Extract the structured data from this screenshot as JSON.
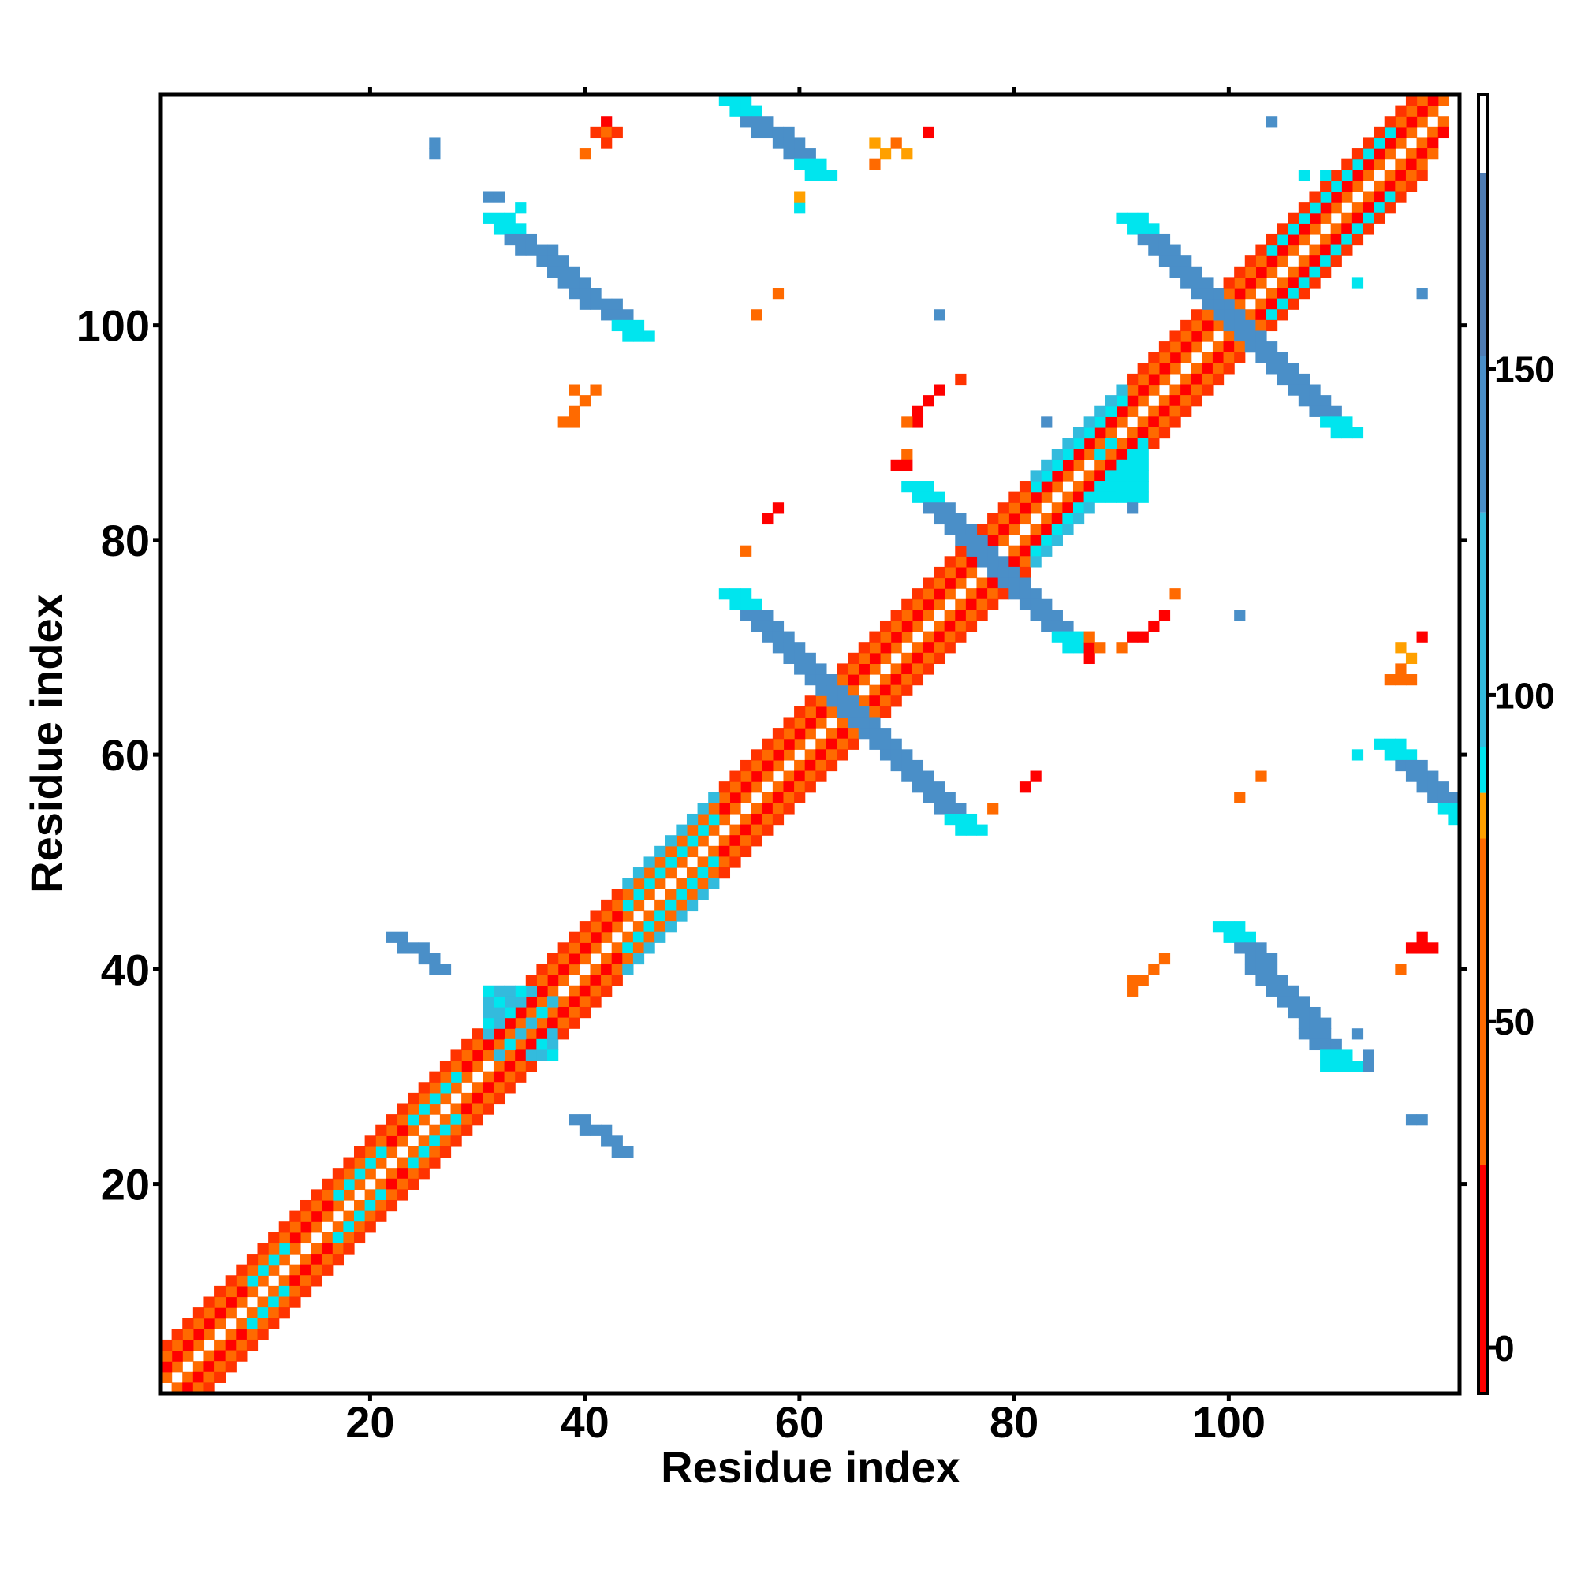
{
  "chart_data": {
    "type": "heatmap",
    "title": "",
    "xlabel": "Residue index",
    "ylabel": "Residue index",
    "xlim": [
      0.5,
      121.5
    ],
    "ylim": [
      0.5,
      121.5
    ],
    "x_ticks": [
      20,
      40,
      60,
      80,
      100
    ],
    "y_ticks": [
      20,
      40,
      60,
      80,
      100
    ],
    "grid": false,
    "legend": "colorbar-right",
    "colorbar": {
      "ticks": [
        0,
        50,
        100,
        150
      ],
      "range": [
        -7,
        192
      ],
      "segments": [
        {
          "from": -7,
          "to": 28,
          "color": "#ff0000"
        },
        {
          "from": 28,
          "to": 78,
          "color": "#ff6a00"
        },
        {
          "from": 78,
          "to": 85,
          "color": "#ffa000"
        },
        {
          "from": 85,
          "to": 92,
          "color": "#00e5ee"
        },
        {
          "from": 92,
          "to": 128,
          "color": "#33bbdd"
        },
        {
          "from": 128,
          "to": 152,
          "color": "#4a8fc8"
        },
        {
          "from": 152,
          "to": 180,
          "color": "#4f7db4"
        },
        {
          "from": 180,
          "to": 192,
          "color": "#ffffff"
        }
      ]
    },
    "colors": {
      "red": "#ff0000",
      "redorange": "#ff3300",
      "orange": "#ff6a00",
      "amber": "#ffa000",
      "cyan": "#00e5ee",
      "lightblue": "#33bbdd",
      "blue": "#4a8fc8"
    },
    "bands": [
      {
        "x0": 1,
        "x1": 120,
        "offset": 1,
        "color": "orange"
      },
      {
        "x0": 1,
        "x1": 120,
        "offset": -1,
        "color": "orange"
      },
      {
        "x0": 1,
        "x1": 120,
        "offset": 2,
        "color": "red"
      },
      {
        "x0": 1,
        "x1": 120,
        "offset": -2,
        "color": "red"
      },
      {
        "x0": 1,
        "x1": 119,
        "offset": 3,
        "color": "orange"
      },
      {
        "x0": 1,
        "x1": 119,
        "offset": -3,
        "color": "orange"
      },
      {
        "x0": 1,
        "x1": 118,
        "offset": 4,
        "color": "redorange"
      },
      {
        "x0": 1,
        "x1": 118,
        "offset": -4,
        "color": "redorange"
      }
    ],
    "diagonal_patches": [
      {
        "x0": 9,
        "x1": 12,
        "offset": 2,
        "color": "cyan"
      },
      {
        "x0": 9,
        "x1": 12,
        "offset": -2,
        "color": "cyan"
      },
      {
        "x0": 17,
        "x1": 21,
        "offset": 2,
        "color": "cyan"
      },
      {
        "x0": 17,
        "x1": 21,
        "offset": -2,
        "color": "cyan"
      },
      {
        "x0": 24,
        "x1": 28,
        "offset": 2,
        "color": "cyan"
      },
      {
        "x0": 24,
        "x1": 28,
        "offset": -2,
        "color": "cyan"
      },
      {
        "x0": 44,
        "x1": 52,
        "offset": 2,
        "color": "cyan"
      },
      {
        "x0": 44,
        "x1": 52,
        "offset": -2,
        "color": "cyan"
      },
      {
        "x0": 44,
        "x1": 52,
        "offset": 4,
        "color": "lightblue"
      },
      {
        "x0": 44,
        "x1": 52,
        "offset": -4,
        "color": "lightblue"
      },
      {
        "x0": 82,
        "x1": 90,
        "offset": 3,
        "color": "cyan"
      },
      {
        "x0": 82,
        "x1": 90,
        "offset": -3,
        "color": "cyan"
      },
      {
        "x0": 82,
        "x1": 90,
        "offset": 4,
        "color": "lightblue"
      },
      {
        "x0": 82,
        "x1": 90,
        "offset": -4,
        "color": "lightblue"
      },
      {
        "x0": 104,
        "x1": 115,
        "offset": 3,
        "color": "cyan"
      },
      {
        "x0": 104,
        "x1": 115,
        "offset": -3,
        "color": "cyan"
      },
      {
        "x0": 36,
        "x1": 41,
        "offset": 2,
        "color": "red"
      },
      {
        "x0": 36,
        "x1": 41,
        "offset": -2,
        "color": "red"
      },
      {
        "x0": 55,
        "x1": 62,
        "offset": 2,
        "color": "red"
      },
      {
        "x0": 55,
        "x1": 62,
        "offset": -2,
        "color": "red"
      },
      {
        "x0": 68,
        "x1": 74,
        "offset": 2,
        "color": "red"
      },
      {
        "x0": 68,
        "x1": 74,
        "offset": -2,
        "color": "red"
      },
      {
        "x0": 91,
        "x1": 97,
        "offset": 2,
        "color": "red"
      },
      {
        "x0": 91,
        "x1": 97,
        "offset": -2,
        "color": "red"
      },
      {
        "x0": 100,
        "x1": 107,
        "offset": 2,
        "color": "red"
      },
      {
        "x0": 100,
        "x1": 107,
        "offset": -2,
        "color": "red"
      },
      {
        "x0": 113,
        "x1": 120,
        "offset": 2,
        "color": "red"
      },
      {
        "x0": 113,
        "x1": 120,
        "offset": -2,
        "color": "red"
      }
    ],
    "anti_strands": [
      {
        "x0": 53,
        "y0": 75,
        "x1": 75,
        "y1": 53,
        "width": 3,
        "color": "blue",
        "edge": "cyan"
      },
      {
        "x0": 70,
        "y0": 85,
        "x1": 85,
        "y1": 70,
        "width": 3,
        "color": "blue",
        "edge": "cyan"
      },
      {
        "x0": 90,
        "y0": 110,
        "x1": 110,
        "y1": 90,
        "width": 3,
        "color": "blue",
        "edge": "cyan"
      },
      {
        "x0": 31,
        "y0": 110,
        "x1": 44,
        "y1": 99,
        "width": 3,
        "color": "blue",
        "edge": "cyan"
      },
      {
        "x0": 99,
        "y0": 44,
        "x1": 110,
        "y1": 31,
        "width": 3,
        "color": "blue",
        "edge": "cyan"
      },
      {
        "x0": 53,
        "y0": 121,
        "x1": 61,
        "y1": 114,
        "width": 3,
        "color": "blue",
        "edge": "cyan"
      },
      {
        "x0": 114,
        "y0": 61,
        "x1": 121,
        "y1": 54,
        "width": 3,
        "color": "blue",
        "edge": "cyan"
      },
      {
        "x0": 22,
        "y0": 43,
        "x1": 26,
        "y1": 40,
        "width": 2,
        "color": "blue",
        "edge": "blue"
      },
      {
        "x0": 39,
        "y0": 26,
        "x1": 43,
        "y1": 23,
        "width": 2,
        "color": "blue",
        "edge": "blue"
      }
    ],
    "blocks": [
      {
        "x0": 31,
        "x1": 37,
        "y0": 32,
        "y1": 38,
        "color": "lightblue"
      },
      {
        "x0": 88,
        "x1": 92,
        "y0": 84,
        "y1": 89,
        "color": "cyan"
      }
    ],
    "points": [
      {
        "x": 41,
        "y": 118,
        "color": "redorange"
      },
      {
        "x": 42,
        "y": 119,
        "color": "red"
      },
      {
        "x": 42,
        "y": 118,
        "color": "orange"
      },
      {
        "x": 43,
        "y": 118,
        "color": "redorange"
      },
      {
        "x": 42,
        "y": 117,
        "color": "redorange"
      },
      {
        "x": 40,
        "y": 116,
        "color": "orange"
      },
      {
        "x": 26,
        "y": 117,
        "color": "blue"
      },
      {
        "x": 26,
        "y": 116,
        "color": "blue"
      },
      {
        "x": 31,
        "y": 112,
        "color": "blue"
      },
      {
        "x": 32,
        "y": 112,
        "color": "blue"
      },
      {
        "x": 34,
        "y": 111,
        "color": "cyan"
      },
      {
        "x": 67,
        "y": 117,
        "color": "amber"
      },
      {
        "x": 68,
        "y": 116,
        "color": "amber"
      },
      {
        "x": 69,
        "y": 117,
        "color": "orange"
      },
      {
        "x": 70,
        "y": 116,
        "color": "amber"
      },
      {
        "x": 67,
        "y": 115,
        "color": "orange"
      },
      {
        "x": 72,
        "y": 118,
        "color": "red"
      },
      {
        "x": 60,
        "y": 111,
        "color": "cyan"
      },
      {
        "x": 60,
        "y": 112,
        "color": "amber"
      },
      {
        "x": 58,
        "y": 103,
        "color": "orange"
      },
      {
        "x": 56,
        "y": 101,
        "color": "orange"
      },
      {
        "x": 73,
        "y": 101,
        "color": "blue"
      },
      {
        "x": 39,
        "y": 94,
        "color": "orange"
      },
      {
        "x": 40,
        "y": 93,
        "color": "orange"
      },
      {
        "x": 41,
        "y": 94,
        "color": "orange"
      },
      {
        "x": 38,
        "y": 91,
        "color": "orange"
      },
      {
        "x": 39,
        "y": 91,
        "color": "orange"
      },
      {
        "x": 39,
        "y": 92,
        "color": "orange"
      },
      {
        "x": 71,
        "y": 92,
        "color": "red"
      },
      {
        "x": 72,
        "y": 93,
        "color": "red"
      },
      {
        "x": 73,
        "y": 94,
        "color": "red"
      },
      {
        "x": 71,
        "y": 91,
        "color": "red"
      },
      {
        "x": 70,
        "y": 91,
        "color": "orange"
      },
      {
        "x": 75,
        "y": 95,
        "color": "redorange"
      },
      {
        "x": 70,
        "y": 88,
        "color": "orange"
      },
      {
        "x": 69,
        "y": 87,
        "color": "red"
      },
      {
        "x": 70,
        "y": 87,
        "color": "red"
      },
      {
        "x": 83,
        "y": 91,
        "color": "blue"
      },
      {
        "x": 91,
        "y": 83,
        "color": "blue"
      },
      {
        "x": 58,
        "y": 83,
        "color": "red"
      },
      {
        "x": 57,
        "y": 82,
        "color": "red"
      },
      {
        "x": 55,
        "y": 79,
        "color": "orange"
      },
      {
        "x": 95,
        "y": 75,
        "color": "orange"
      },
      {
        "x": 94,
        "y": 73,
        "color": "red"
      },
      {
        "x": 93,
        "y": 72,
        "color": "red"
      },
      {
        "x": 92,
        "y": 71,
        "color": "red"
      },
      {
        "x": 91,
        "y": 71,
        "color": "red"
      },
      {
        "x": 90,
        "y": 70,
        "color": "orange"
      },
      {
        "x": 87,
        "y": 71,
        "color": "orange"
      },
      {
        "x": 87,
        "y": 70,
        "color": "red"
      },
      {
        "x": 87,
        "y": 69,
        "color": "red"
      },
      {
        "x": 88,
        "y": 70,
        "color": "orange"
      },
      {
        "x": 101,
        "y": 73,
        "color": "blue"
      },
      {
        "x": 118,
        "y": 71,
        "color": "red"
      },
      {
        "x": 116,
        "y": 70,
        "color": "amber"
      },
      {
        "x": 117,
        "y": 69,
        "color": "amber"
      },
      {
        "x": 116,
        "y": 68,
        "color": "orange"
      },
      {
        "x": 115,
        "y": 67,
        "color": "orange"
      },
      {
        "x": 116,
        "y": 67,
        "color": "orange"
      },
      {
        "x": 117,
        "y": 67,
        "color": "orange"
      },
      {
        "x": 82,
        "y": 58,
        "color": "red"
      },
      {
        "x": 81,
        "y": 57,
        "color": "red"
      },
      {
        "x": 78,
        "y": 55,
        "color": "orange"
      },
      {
        "x": 103,
        "y": 58,
        "color": "orange"
      },
      {
        "x": 101,
        "y": 56,
        "color": "orange"
      },
      {
        "x": 112,
        "y": 60,
        "color": "cyan"
      },
      {
        "x": 94,
        "y": 41,
        "color": "orange"
      },
      {
        "x": 93,
        "y": 40,
        "color": "orange"
      },
      {
        "x": 92,
        "y": 39,
        "color": "orange"
      },
      {
        "x": 91,
        "y": 39,
        "color": "orange"
      },
      {
        "x": 91,
        "y": 38,
        "color": "orange"
      },
      {
        "x": 118,
        "y": 43,
        "color": "red"
      },
      {
        "x": 117,
        "y": 42,
        "color": "red"
      },
      {
        "x": 118,
        "y": 42,
        "color": "red"
      },
      {
        "x": 119,
        "y": 42,
        "color": "red"
      },
      {
        "x": 116,
        "y": 40,
        "color": "orange"
      },
      {
        "x": 112,
        "y": 34,
        "color": "blue"
      },
      {
        "x": 113,
        "y": 32,
        "color": "blue"
      },
      {
        "x": 113,
        "y": 31,
        "color": "blue"
      },
      {
        "x": 109,
        "y": 31,
        "color": "cyan"
      },
      {
        "x": 117,
        "y": 26,
        "color": "blue"
      },
      {
        "x": 118,
        "y": 26,
        "color": "blue"
      },
      {
        "x": 104,
        "y": 119,
        "color": "blue"
      },
      {
        "x": 109,
        "y": 114,
        "color": "cyan"
      },
      {
        "x": 112,
        "y": 104,
        "color": "cyan"
      },
      {
        "x": 118,
        "y": 103,
        "color": "blue"
      },
      {
        "x": 107,
        "y": 114,
        "color": "cyan"
      }
    ]
  }
}
